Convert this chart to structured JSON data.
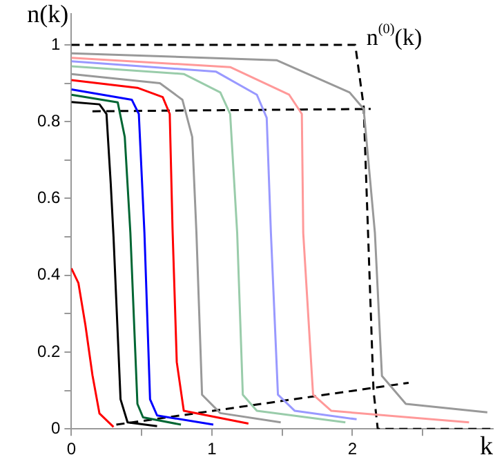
{
  "chart_data": {
    "type": "line",
    "xlabel": "k",
    "ylabel": "n(k)",
    "xlim": [
      0,
      3
    ],
    "ylim": [
      0,
      1.08
    ],
    "xticks": [
      0,
      {
        "value": 0.5,
        "label": null
      },
      1,
      {
        "value": 1.5,
        "label": null
      },
      2,
      {
        "value": 2.5,
        "label": null
      }
    ],
    "yticks": [
      0,
      {
        "value": 0.1,
        "label": null
      },
      0.2,
      {
        "value": 0.3,
        "label": null
      },
      0.4,
      {
        "value": 0.5,
        "label": null
      },
      0.6,
      {
        "value": 0.7,
        "label": null
      },
      0.8,
      {
        "value": 0.9,
        "label": null
      },
      1
    ],
    "grid": false,
    "legend": false,
    "marker": "none",
    "annotations": [
      "n$^{(0)}$(k)"
    ],
    "series": [
      {
        "color": "#ff0000",
        "x": [
          0,
          0.05,
          0.1,
          0.15,
          0.2,
          0.3
        ],
        "values": [
          0.418,
          0.38,
          0.27,
          0.14,
          0.04,
          0.005
        ]
      },
      {
        "color": "#000000",
        "x": [
          0,
          0.2,
          0.25,
          0.28,
          0.3,
          0.35,
          0.4,
          0.61
        ],
        "values": [
          0.851,
          0.845,
          0.82,
          0.64,
          0.5,
          0.077,
          0.017,
          0.007
        ]
      },
      {
        "color": "#006633",
        "x": [
          0,
          0.33,
          0.38,
          0.42,
          0.47,
          0.51,
          0.78
        ],
        "values": [
          0.87,
          0.85,
          0.76,
          0.51,
          0.065,
          0.03,
          0.011
        ]
      },
      {
        "color": "#0000ff",
        "x": [
          0,
          0.43,
          0.48,
          0.52,
          0.56,
          0.61,
          1.01
        ],
        "values": [
          0.884,
          0.857,
          0.82,
          0.51,
          0.077,
          0.035,
          0.011
        ]
      },
      {
        "color": "#ff0000",
        "x": [
          0,
          0.47,
          0.65,
          0.7,
          0.72,
          0.75,
          0.8,
          1.26
        ],
        "values": [
          0.908,
          0.888,
          0.864,
          0.82,
          0.52,
          0.174,
          0.047,
          0.014
        ]
      },
      {
        "color": "#999999",
        "x": [
          0,
          0.63,
          0.79,
          0.86,
          0.89,
          0.93,
          1.06,
          1.49
        ],
        "values": [
          0.924,
          0.9,
          0.857,
          0.76,
          0.51,
          0.089,
          0.041,
          0.017
        ]
      },
      {
        "color": "#99ccaa",
        "x": [
          0,
          0.8,
          1.06,
          1.13,
          1.18,
          1.22,
          1.32,
          1.95
        ],
        "values": [
          0.944,
          0.924,
          0.876,
          0.82,
          0.51,
          0.089,
          0.047,
          0.017
        ]
      },
      {
        "color": "#9999ff",
        "x": [
          0,
          1.03,
          1.32,
          1.39,
          1.42,
          1.47,
          1.59,
          2.03
        ],
        "values": [
          0.957,
          0.93,
          0.87,
          0.81,
          0.51,
          0.089,
          0.047,
          0.025
        ]
      },
      {
        "color": "#ff9999",
        "x": [
          0,
          1.13,
          1.55,
          1.64,
          1.65,
          1.72,
          1.85,
          2.83
        ],
        "values": [
          0.966,
          0.942,
          0.87,
          0.82,
          0.51,
          0.089,
          0.047,
          0.017
        ]
      },
      {
        "color": "#999999",
        "x": [
          0,
          1.46,
          1.98,
          2.08,
          2.16,
          2.21,
          2.38,
          2.96
        ],
        "values": [
          0.978,
          0.96,
          0.876,
          0.833,
          0.51,
          0.138,
          0.065,
          0.043
        ]
      },
      {
        "color": "#000000",
        "line_style": "dashed",
        "x": [
          0,
          2.02,
          2.08,
          2.15,
          2.18,
          3
        ],
        "values": [
          1,
          1,
          0.84,
          0.1,
          0,
          0
        ]
      },
      {
        "color": "#000000",
        "line_style": "dashed",
        "x": [
          0.15,
          2.13
        ],
        "values": [
          0.827,
          0.833
        ]
      },
      {
        "color": "#000000",
        "line_style": "dashed",
        "x": [
          0.32,
          2.4
        ],
        "values": [
          0.011,
          0.12
        ]
      }
    ]
  }
}
